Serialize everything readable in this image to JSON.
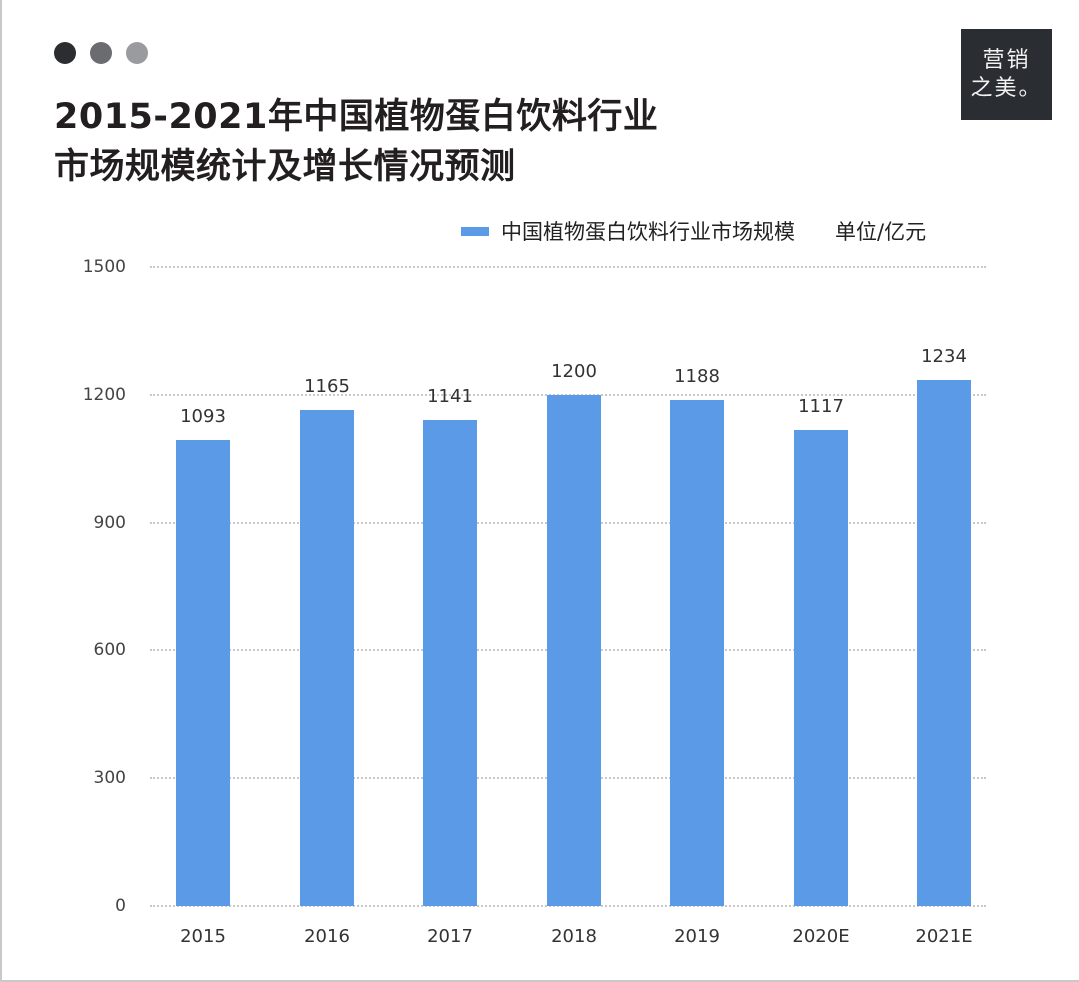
{
  "header": {
    "dots": [
      {
        "color": "#2b2d31"
      },
      {
        "color": "#6b6c70"
      },
      {
        "color": "#9a9b9e"
      }
    ],
    "title_line1": "2015-2021年中国植物蛋白饮料行业",
    "title_line2": "市场规模统计及增长情况预测",
    "logo_line1": "营销",
    "logo_line2": "之美。"
  },
  "legend": {
    "series_label": "中国植物蛋白饮料行业市场规模",
    "unit_label": "单位/亿元",
    "color": "#5a9ae6"
  },
  "colors": {
    "bar": "#5a9ae6",
    "grid": "#c8c8c8",
    "logo_bg": "#2a2e33"
  },
  "chart_data": {
    "type": "bar",
    "title": "2015-2021年中国植物蛋白饮料行业市场规模统计及增长情况预测",
    "xlabel": "",
    "ylabel": "单位/亿元",
    "categories": [
      "2015",
      "2016",
      "2017",
      "2018",
      "2019",
      "2020E",
      "2021E"
    ],
    "series": [
      {
        "name": "中国植物蛋白饮料行业市场规模",
        "values": [
          1093,
          1165,
          1141,
          1200,
          1188,
          1117,
          1234
        ],
        "color": "#5a9ae6"
      }
    ],
    "ylim": [
      0,
      1500
    ],
    "yticks": [
      0,
      300,
      600,
      900,
      1200,
      1500
    ],
    "grid": true,
    "grid_style": "dotted horizontal",
    "legend_position": "top-right",
    "data_labels": true
  }
}
